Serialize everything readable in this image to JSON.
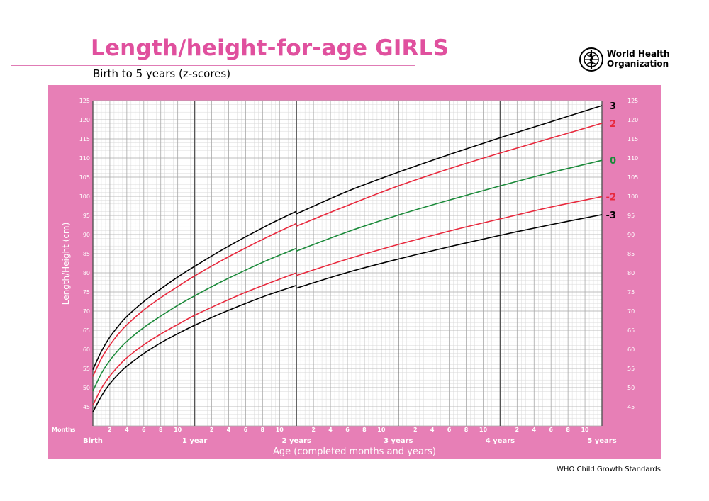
{
  "header": {
    "title": "Length/height-for-age GIRLS",
    "subtitle": "Birth to 5 years (z-scores)",
    "organization": {
      "line1": "World Health",
      "line2": "Organization",
      "emblem": "who-emblem-icon"
    }
  },
  "footer": {
    "text": "WHO Child Growth Standards"
  },
  "colors": {
    "frame": "#e77fb6",
    "title": "#e0509e",
    "z3": "#000000",
    "z2": "#e8283c",
    "z0": "#1b8a3a"
  },
  "chart_data": {
    "type": "line",
    "title": "Length/height-for-age GIRLS",
    "subtitle": "Birth to 5 years (z-scores)",
    "xlabel": "Age (completed months and years)",
    "ylabel": "Length/Height (cm)",
    "x_unit_label": "Months",
    "xlim": [
      0,
      60
    ],
    "ylim": [
      40,
      125
    ],
    "y_ticks": [
      45,
      50,
      55,
      60,
      65,
      70,
      75,
      80,
      85,
      90,
      95,
      100,
      105,
      110,
      115,
      120,
      125
    ],
    "x_month_ticks": [
      "2",
      "4",
      "6",
      "8",
      "10"
    ],
    "x_year_labels": [
      {
        "month": 0,
        "label": "Birth"
      },
      {
        "month": 12,
        "label": "1 year"
      },
      {
        "month": 24,
        "label": "2 years"
      },
      {
        "month": 36,
        "label": "3 years"
      },
      {
        "month": 48,
        "label": "4 years"
      },
      {
        "month": 60,
        "label": "5 years"
      }
    ],
    "grid": true,
    "legend": "curve labels at right end",
    "series": [
      {
        "name": "3",
        "color": "#000000",
        "segments": [
          {
            "x": [
              0,
              1,
              2,
              3,
              4,
              6,
              8,
              10,
              12,
              15,
              18,
              21,
              24
            ],
            "y": [
              54.7,
              59.5,
              63.2,
              66.1,
              68.6,
              72.5,
              75.8,
              78.9,
              81.7,
              85.7,
              89.4,
              92.9,
              96.1
            ]
          },
          {
            "x": [
              24,
              30,
              36,
              42,
              48,
              54,
              60
            ],
            "y": [
              95.4,
              101.3,
              106.3,
              110.9,
              115.3,
              119.5,
              123.7
            ]
          }
        ]
      },
      {
        "name": "2",
        "color": "#e8283c",
        "segments": [
          {
            "x": [
              0,
              1,
              2,
              3,
              4,
              6,
              8,
              10,
              12,
              15,
              18,
              21,
              24
            ],
            "y": [
              52.9,
              57.6,
              61.1,
              64.0,
              66.4,
              70.3,
              73.5,
              76.4,
              79.2,
              83.0,
              86.5,
              89.8,
              92.9
            ]
          },
          {
            "x": [
              24,
              30,
              36,
              42,
              48,
              54,
              60
            ],
            "y": [
              92.2,
              97.6,
              102.7,
              107.2,
              111.3,
              115.2,
              119.1
            ]
          }
        ]
      },
      {
        "name": "0",
        "color": "#1b8a3a",
        "segments": [
          {
            "x": [
              0,
              1,
              2,
              3,
              4,
              6,
              8,
              10,
              12,
              15,
              18,
              21,
              24
            ],
            "y": [
              49.1,
              53.7,
              57.1,
              59.8,
              62.1,
              65.7,
              68.7,
              71.5,
              74.0,
              77.5,
              80.7,
              83.7,
              86.4
            ]
          },
          {
            "x": [
              24,
              30,
              36,
              42,
              48,
              54,
              60
            ],
            "y": [
              85.7,
              90.7,
              95.1,
              99.0,
              102.7,
              106.2,
              109.4
            ]
          }
        ]
      },
      {
        "name": "-2",
        "color": "#e8283c",
        "segments": [
          {
            "x": [
              0,
              1,
              2,
              3,
              4,
              6,
              8,
              10,
              12,
              15,
              18,
              21,
              24
            ],
            "y": [
              45.4,
              49.8,
              53.0,
              55.6,
              57.8,
              61.2,
              64.0,
              66.5,
              68.9,
              72.0,
              74.9,
              77.5,
              80.0
            ]
          },
          {
            "x": [
              24,
              30,
              36,
              42,
              48,
              54,
              60
            ],
            "y": [
              79.3,
              83.6,
              87.4,
              90.9,
              94.1,
              97.2,
              99.9
            ]
          }
        ]
      },
      {
        "name": "-3",
        "color": "#000000",
        "segments": [
          {
            "x": [
              0,
              1,
              2,
              3,
              4,
              6,
              8,
              10,
              12,
              15,
              18,
              21,
              24
            ],
            "y": [
              43.6,
              47.8,
              51.0,
              53.5,
              55.6,
              58.9,
              61.7,
              64.1,
              66.3,
              69.3,
              72.0,
              74.5,
              76.7
            ]
          },
          {
            "x": [
              24,
              30,
              36,
              42,
              48,
              54,
              60
            ],
            "y": [
              76.0,
              80.1,
              83.6,
              86.8,
              89.8,
              92.6,
              95.2
            ]
          }
        ]
      }
    ]
  }
}
